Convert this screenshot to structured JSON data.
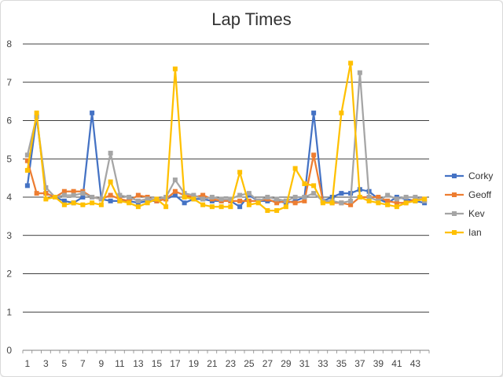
{
  "chart_data": {
    "type": "line",
    "title": "Lap Times",
    "xlabel": "",
    "ylabel": "",
    "ylim": [
      0,
      8
    ],
    "yticks": [
      0,
      1,
      2,
      3,
      4,
      5,
      6,
      7,
      8
    ],
    "xtick_labels": [
      "1",
      "3",
      "5",
      "7",
      "9",
      "11",
      "13",
      "15",
      "17",
      "19",
      "21",
      "23",
      "25",
      "27",
      "29",
      "31",
      "33",
      "35",
      "37",
      "39",
      "41",
      "43"
    ],
    "grid": "horizontal",
    "legend_position": "right",
    "x": [
      1,
      2,
      3,
      4,
      5,
      6,
      7,
      8,
      9,
      10,
      11,
      12,
      13,
      14,
      15,
      16,
      17,
      18,
      19,
      20,
      21,
      22,
      23,
      24,
      25,
      26,
      27,
      28,
      29,
      30,
      31,
      32,
      33,
      34,
      35,
      36,
      37,
      38,
      39,
      40,
      41,
      42,
      43,
      44
    ],
    "series": [
      {
        "name": "Corky",
        "color": "#4472C4",
        "values": [
          4.3,
          6.1,
          4.1,
          4.0,
          3.9,
          3.85,
          4.0,
          6.2,
          3.95,
          3.9,
          3.9,
          3.9,
          3.85,
          3.9,
          3.9,
          3.95,
          4.05,
          3.85,
          3.95,
          3.95,
          3.9,
          3.9,
          3.9,
          3.75,
          4.05,
          3.9,
          3.9,
          3.9,
          3.85,
          3.9,
          4.0,
          6.2,
          3.9,
          4.0,
          4.1,
          4.1,
          4.2,
          4.15,
          3.95,
          3.85,
          4.0,
          3.95,
          3.9,
          3.85
        ]
      },
      {
        "name": "Geoff",
        "color": "#ED7D31",
        "values": [
          4.95,
          4.1,
          4.1,
          4.0,
          4.15,
          4.15,
          4.15,
          4.0,
          3.95,
          4.05,
          3.95,
          3.9,
          4.05,
          4.0,
          3.9,
          3.95,
          4.15,
          4.05,
          4.0,
          4.05,
          3.95,
          3.9,
          3.9,
          3.9,
          3.9,
          3.9,
          3.95,
          3.85,
          3.9,
          3.85,
          3.9,
          5.1,
          3.9,
          3.85,
          3.85,
          3.8,
          4.0,
          4.0,
          4.0,
          3.9,
          3.85,
          3.85,
          3.95,
          3.95
        ]
      },
      {
        "name": "Kev",
        "color": "#A5A5A5",
        "values": [
          5.1,
          6.1,
          4.25,
          4.0,
          4.05,
          4.05,
          4.1,
          4.0,
          3.95,
          5.15,
          4.05,
          4.0,
          3.9,
          3.95,
          3.95,
          4.0,
          4.45,
          4.1,
          4.05,
          3.95,
          4.0,
          3.95,
          3.95,
          4.05,
          4.1,
          3.9,
          4.0,
          3.95,
          3.9,
          4.0,
          4.0,
          4.1,
          3.9,
          3.9,
          3.85,
          3.9,
          7.25,
          4.0,
          3.9,
          4.05,
          3.95,
          4.0,
          4.0,
          3.9
        ]
      },
      {
        "name": "Ian",
        "color": "#FFC000",
        "values": [
          4.7,
          6.2,
          3.95,
          4.0,
          3.8,
          3.85,
          3.8,
          3.85,
          3.8,
          4.4,
          3.9,
          3.85,
          3.75,
          3.85,
          3.95,
          3.75,
          7.35,
          4.0,
          3.95,
          3.8,
          3.75,
          3.75,
          3.75,
          4.65,
          3.8,
          3.85,
          3.65,
          3.65,
          3.75,
          4.75,
          4.35,
          4.3,
          3.85,
          3.85,
          6.2,
          7.5,
          4.0,
          3.9,
          3.85,
          3.8,
          3.75,
          3.85,
          3.9,
          3.95
        ]
      }
    ]
  }
}
